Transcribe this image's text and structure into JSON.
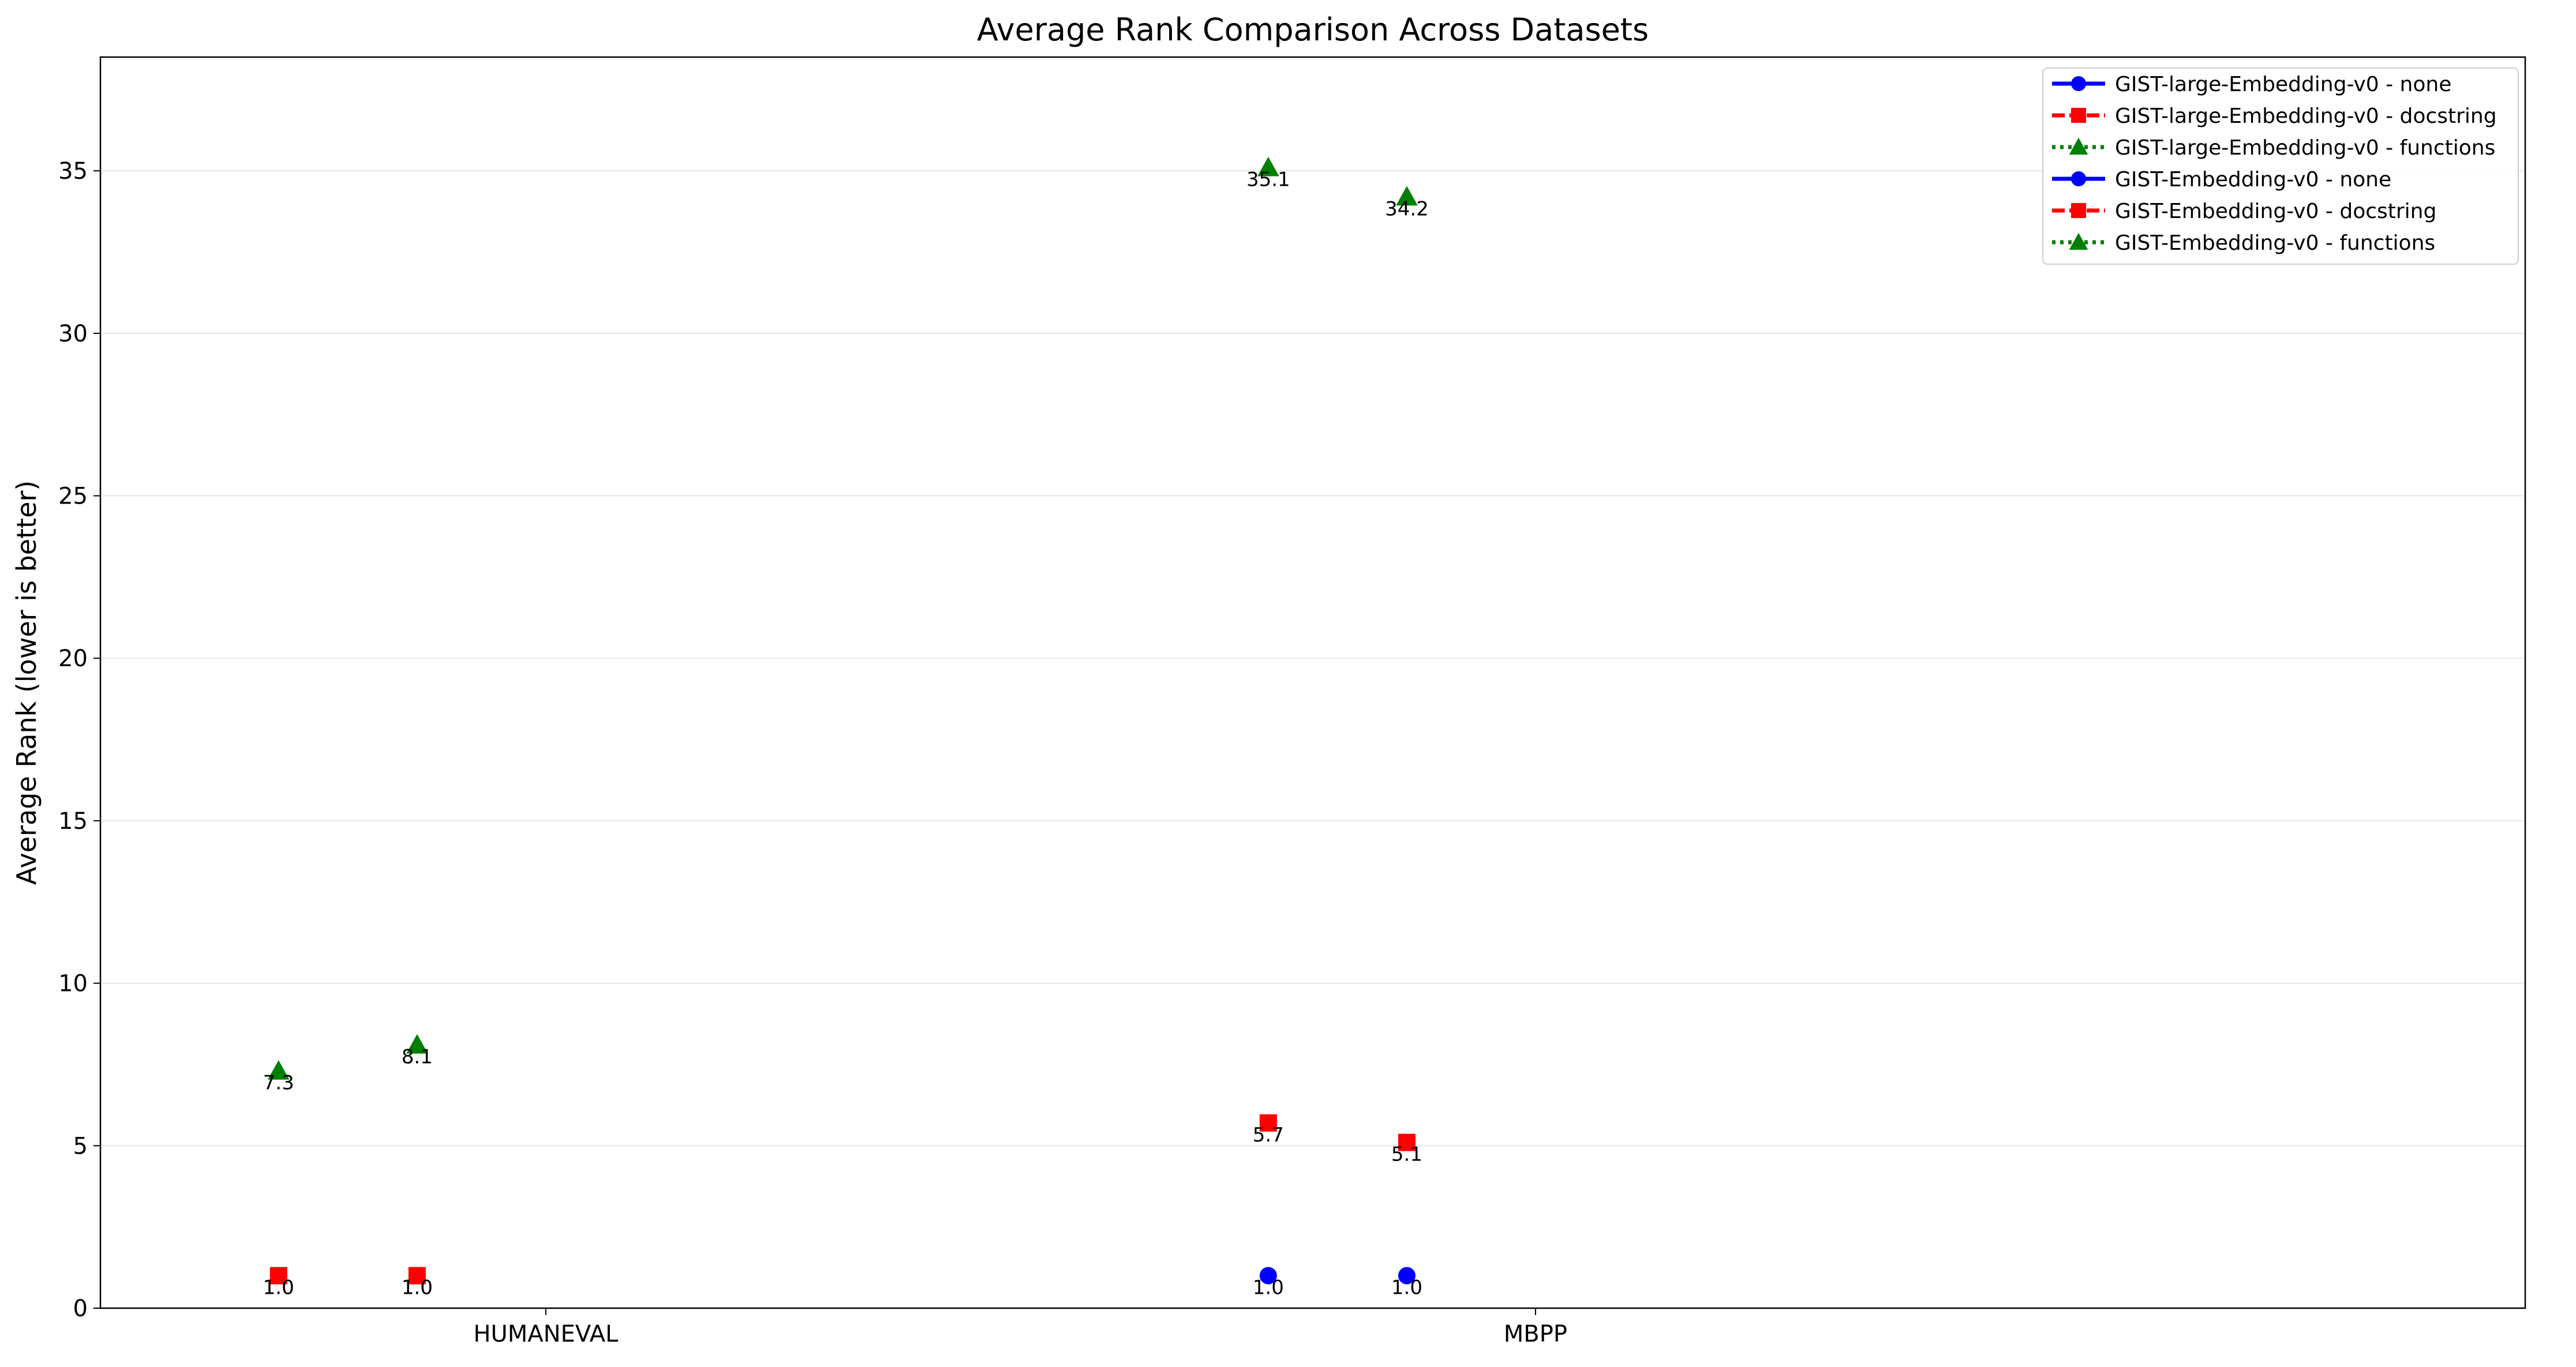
{
  "chart_data": {
    "type": "line",
    "title": "Average Rank Comparison Across Datasets",
    "xlabel": "",
    "ylabel": "Average Rank (lower is better)",
    "categories": [
      "HUMANEVAL",
      "MBPP"
    ],
    "ylim": [
      0,
      38.5
    ],
    "yticks": [
      0,
      5,
      10,
      15,
      20,
      25,
      30,
      35
    ],
    "grid": "y",
    "legend_position": "top-right",
    "series": [
      {
        "name": "GIST-large-Embedding-v0 - none",
        "color": "#0000ff",
        "marker": "circle",
        "line": "solid",
        "points": [
          {
            "x": -0.27,
            "y": 1.0,
            "label": "1.0"
          },
          {
            "x": 0.73,
            "y": 1.0,
            "label": "1.0"
          }
        ]
      },
      {
        "name": "GIST-large-Embedding-v0 - docstring",
        "color": "#ff0000",
        "marker": "square",
        "line": "dashed",
        "points": [
          {
            "x": -0.27,
            "y": 1.0,
            "label": "1.0"
          },
          {
            "x": 0.73,
            "y": 5.7,
            "label": "5.7"
          }
        ]
      },
      {
        "name": "GIST-large-Embedding-v0 - functions",
        "color": "#008000",
        "marker": "triangle",
        "line": "dotted",
        "points": [
          {
            "x": -0.27,
            "y": 7.3,
            "label": "7.3"
          },
          {
            "x": 0.73,
            "y": 35.1,
            "label": "35.1"
          }
        ]
      },
      {
        "name": "GIST-Embedding-v0 - none",
        "color": "#0000ff",
        "marker": "circle",
        "line": "solid",
        "points": [
          {
            "x": -0.13,
            "y": 1.0,
            "label": "1.0"
          },
          {
            "x": 0.87,
            "y": 1.0,
            "label": "1.0"
          }
        ]
      },
      {
        "name": "GIST-Embedding-v0 - docstring",
        "color": "#ff0000",
        "marker": "square",
        "line": "dashed",
        "points": [
          {
            "x": -0.13,
            "y": 1.0,
            "label": "1.0"
          },
          {
            "x": 0.87,
            "y": 5.1,
            "label": "5.1"
          }
        ]
      },
      {
        "name": "GIST-Embedding-v0 - functions",
        "color": "#008000",
        "marker": "triangle",
        "line": "dotted",
        "points": [
          {
            "x": -0.13,
            "y": 8.1,
            "label": "8.1"
          },
          {
            "x": 0.87,
            "y": 34.2,
            "label": "34.2"
          }
        ]
      }
    ]
  }
}
